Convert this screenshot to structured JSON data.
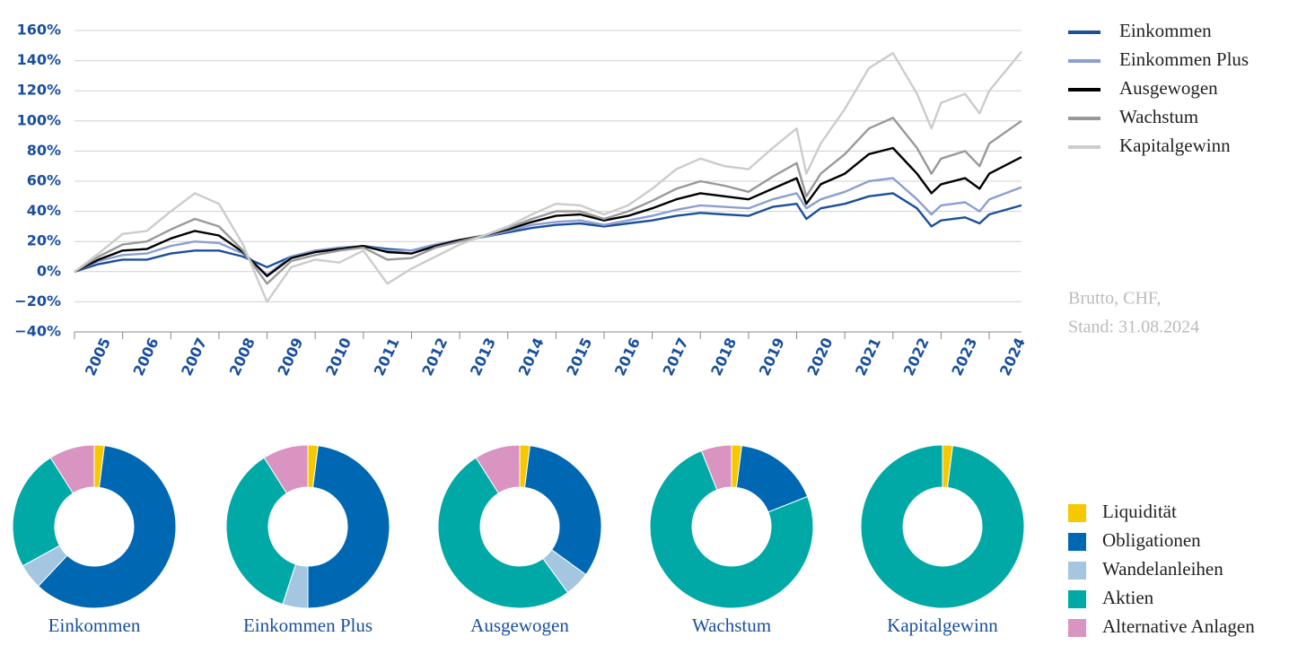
{
  "chart_data": [
    {
      "type": "line",
      "x": [
        2005.0,
        2005.5,
        2006.0,
        2006.5,
        2007.0,
        2007.5,
        2008.0,
        2008.5,
        2009.0,
        2009.5,
        2010.0,
        2010.5,
        2011.0,
        2011.5,
        2012.0,
        2012.5,
        2013.0,
        2013.5,
        2014.0,
        2014.5,
        2015.0,
        2015.5,
        2016.0,
        2016.5,
        2017.0,
        2017.5,
        2018.0,
        2018.5,
        2019.0,
        2019.5,
        2020.0,
        2020.2,
        2020.5,
        2021.0,
        2021.5,
        2022.0,
        2022.5,
        2022.8,
        2023.0,
        2023.5,
        2023.8,
        2024.0,
        2024.67
      ],
      "series": [
        {
          "name": "Einkommen",
          "color": "#1a4f9c",
          "values": [
            0,
            5,
            8,
            8,
            12,
            14,
            14,
            10,
            3,
            10,
            14,
            15,
            17,
            15,
            14,
            18,
            21,
            23,
            26,
            29,
            31,
            32,
            30,
            32,
            34,
            37,
            39,
            38,
            37,
            43,
            45,
            35,
            42,
            45,
            50,
            52,
            42,
            30,
            34,
            36,
            32,
            38,
            44
          ]
        },
        {
          "name": "Einkommen Plus",
          "color": "#8c9fd0",
          "values": [
            0,
            7,
            11,
            12,
            17,
            20,
            19,
            12,
            -2,
            10,
            14,
            16,
            17,
            14,
            14,
            18,
            21,
            23,
            27,
            31,
            33,
            34,
            31,
            34,
            37,
            41,
            44,
            43,
            42,
            48,
            52,
            42,
            48,
            53,
            60,
            62,
            48,
            38,
            44,
            46,
            40,
            48,
            56
          ]
        },
        {
          "name": "Ausgewogen",
          "color": "#000000",
          "values": [
            0,
            8,
            14,
            15,
            22,
            27,
            24,
            13,
            -3,
            9,
            13,
            15,
            17,
            13,
            12,
            17,
            21,
            24,
            28,
            33,
            37,
            38,
            34,
            37,
            42,
            48,
            52,
            50,
            48,
            55,
            62,
            45,
            58,
            65,
            78,
            82,
            65,
            52,
            58,
            62,
            55,
            65,
            76
          ]
        },
        {
          "name": "Wachstum",
          "color": "#999999",
          "values": [
            0,
            10,
            18,
            20,
            28,
            35,
            30,
            14,
            -8,
            7,
            11,
            14,
            16,
            8,
            9,
            16,
            20,
            24,
            29,
            35,
            40,
            40,
            35,
            40,
            47,
            55,
            60,
            57,
            53,
            63,
            72,
            50,
            65,
            78,
            95,
            102,
            82,
            65,
            75,
            80,
            70,
            85,
            100
          ]
        },
        {
          "name": "Kapitalgewinn",
          "color": "#cccccc",
          "values": [
            0,
            12,
            25,
            27,
            40,
            52,
            45,
            18,
            -20,
            3,
            8,
            6,
            14,
            -8,
            2,
            10,
            18,
            24,
            30,
            38,
            45,
            44,
            38,
            44,
            55,
            68,
            75,
            70,
            68,
            82,
            95,
            65,
            85,
            108,
            135,
            145,
            118,
            95,
            112,
            118,
            105,
            120,
            146
          ]
        }
      ],
      "xlim": [
        2005,
        2024.67
      ],
      "xticks": [
        {
          "value": 2005,
          "label": "2005"
        },
        {
          "value": 2006,
          "label": "2006"
        },
        {
          "value": 2007,
          "label": "2007"
        },
        {
          "value": 2008,
          "label": "2008"
        },
        {
          "value": 2009,
          "label": "2009"
        },
        {
          "value": 2010,
          "label": "2010"
        },
        {
          "value": 2011,
          "label": "2011"
        },
        {
          "value": 2012,
          "label": "2012"
        },
        {
          "value": 2013,
          "label": "2013"
        },
        {
          "value": 2014,
          "label": "2014"
        },
        {
          "value": 2015,
          "label": "2015"
        },
        {
          "value": 2016,
          "label": "2016"
        },
        {
          "value": 2017,
          "label": "2017"
        },
        {
          "value": 2018,
          "label": "2018"
        },
        {
          "value": 2019,
          "label": "2019"
        },
        {
          "value": 2020,
          "label": "2020"
        },
        {
          "value": 2021,
          "label": "2021"
        },
        {
          "value": 2022,
          "label": "2022"
        },
        {
          "value": 2023,
          "label": "2023"
        },
        {
          "value": 2024,
          "label": "2024"
        }
      ],
      "ylim": [
        -40,
        160
      ],
      "yticks": [
        {
          "value": -40,
          "label": "−40%"
        },
        {
          "value": -20,
          "label": "−20%"
        },
        {
          "value": 0,
          "label": "0%"
        },
        {
          "value": 20,
          "label": "20%"
        },
        {
          "value": 40,
          "label": "40%"
        },
        {
          "value": 60,
          "label": "60%"
        },
        {
          "value": 80,
          "label": "80%"
        },
        {
          "value": 100,
          "label": "100%"
        },
        {
          "value": 120,
          "label": "120%"
        },
        {
          "value": 140,
          "label": "140%"
        },
        {
          "value": 160,
          "label": "160%"
        }
      ],
      "grid": true,
      "legend": "right",
      "annotations": [
        "Brutto, CHF,",
        "Stand: 31.08.2024"
      ]
    },
    {
      "type": "pie",
      "donut": true,
      "categories": [
        "Liquidität",
        "Obligationen",
        "Wandelanleihen",
        "Aktien",
        "Alternative Anlagen"
      ],
      "colors": [
        "#f5c800",
        "#0068b3",
        "#a4c6e1",
        "#00a9a6",
        "#d994c2"
      ],
      "series": [
        {
          "name": "Einkommen",
          "values": [
            2,
            60,
            5,
            24,
            9
          ]
        },
        {
          "name": "Einkommen Plus",
          "values": [
            2,
            48,
            5,
            36,
            9
          ]
        },
        {
          "name": "Ausgewogen",
          "values": [
            2,
            33,
            5,
            51,
            9
          ]
        },
        {
          "name": "Wachstum",
          "values": [
            2,
            17,
            0,
            75,
            6
          ]
        },
        {
          "name": "Kapitalgewinn",
          "values": [
            2,
            0,
            0,
            98,
            0
          ]
        }
      ],
      "legend": "right"
    }
  ]
}
